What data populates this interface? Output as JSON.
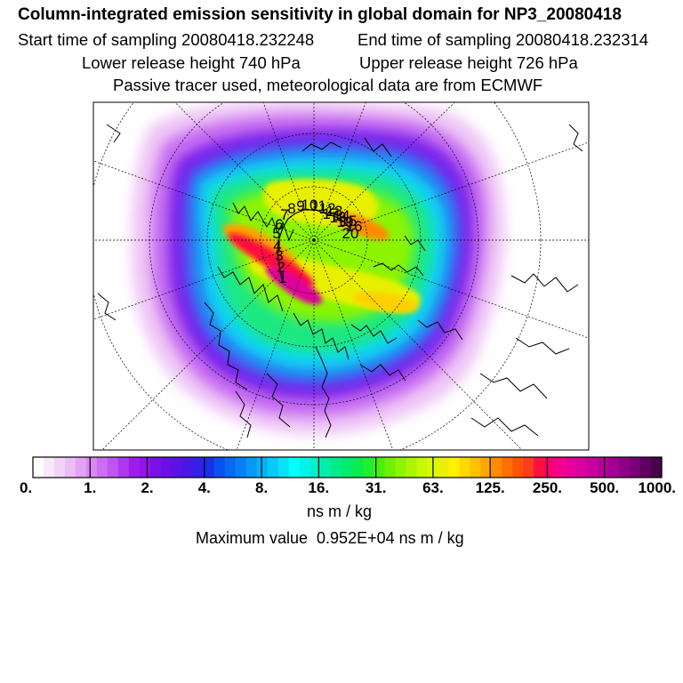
{
  "header": {
    "title": "Column-integrated emission sensitivity in global domain for NP3_20080418",
    "start_label": "Start time of sampling 20080418.232248",
    "end_label": "End time of sampling 20080418.232314",
    "lower_label": "Lower release height  740 hPa",
    "upper_label": "Upper release height  726 hPa",
    "tracer_label": "Passive tracer used, meteorological data are from ECMWF"
  },
  "map": {
    "projection": "north-polar-stereographic",
    "trajectory_labels": [
      "1",
      "2",
      "3",
      "4",
      "5",
      "6",
      "7",
      "8",
      "9",
      "10",
      "11",
      "12",
      "13",
      "14",
      "15",
      "16",
      "17",
      "18",
      "19",
      "20"
    ],
    "trajectory_color": "#000000"
  },
  "legend": {
    "tick_labels": [
      "0.",
      "1.",
      "2.",
      "4.",
      "8.",
      "16.",
      "31.",
      "63.",
      "125.",
      "250.",
      "500.",
      "1000."
    ],
    "colors": [
      "#ffffff",
      "#f9e8fb",
      "#f3d2f7",
      "#ecbcf4",
      "#e4a3f3",
      "#d988f2",
      "#cc6ef1",
      "#bf54f0",
      "#ae37ee",
      "#a01cec",
      "#9414ec",
      "#7a10e8",
      "#6a10e6",
      "#5a12e6",
      "#4a18e6",
      "#3420e6",
      "#1830e8",
      "#0a50ee",
      "#0868f2",
      "#0880f4",
      "#0898f6",
      "#08b0f8",
      "#08cbf8",
      "#08e2f6",
      "#00ffff",
      "#00f4e8",
      "#00f0c8",
      "#00eea8",
      "#00ec88",
      "#00ec6c",
      "#08ec50",
      "#20ee30",
      "#48f010",
      "#6cf200",
      "#8cf400",
      "#aaf600",
      "#c6f800",
      "#d8fa00",
      "#ecf000",
      "#fff000",
      "#ffd800",
      "#ffc000",
      "#ffa600",
      "#ff8c00",
      "#ff7000",
      "#ff5400",
      "#ff3c20",
      "#ff1040",
      "#ff0070",
      "#f40090",
      "#e8009c",
      "#d8009e",
      "#c8009e",
      "#b8009a",
      "#a20094",
      "#8c0088",
      "#760078",
      "#600060",
      "#4a004a"
    ],
    "units": "ns m / kg",
    "max_value_label": "Maximum value  0.952E+04 ns m / kg"
  }
}
